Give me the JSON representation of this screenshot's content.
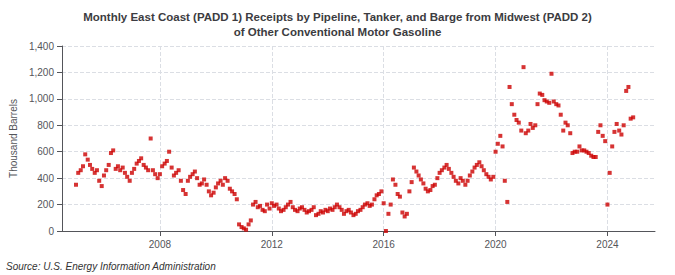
{
  "chart_data": {
    "type": "scatter",
    "title": "Monthly East Coast (PADD 1) Receipts by Pipeline, Tanker, and Barge from Midwest (PADD 2)\nof Other Conventional Motor Gasoline",
    "ylabel": "Thousand Barrels",
    "annotations": [
      "Source: U.S. Energy Information Administration"
    ],
    "color": "#CC0000",
    "marker": "square",
    "grid": true,
    "xlim": [
      2004.5,
      2025.7
    ],
    "xticks": [
      2008,
      2012,
      2016,
      2020,
      2024
    ],
    "ylim": [
      0,
      1400
    ],
    "yticks": [
      0,
      200,
      400,
      600,
      800,
      {
        "value": 1000,
        "label": "1,000"
      },
      {
        "value": 1200,
        "label": "1,200"
      },
      {
        "value": 1400,
        "label": "1,400"
      }
    ],
    "x": [
      2005.0,
      2005.08,
      2005.17,
      2005.25,
      2005.33,
      2005.42,
      2005.5,
      2005.58,
      2005.67,
      2005.75,
      2005.83,
      2005.92,
      2006.0,
      2006.08,
      2006.17,
      2006.25,
      2006.33,
      2006.42,
      2006.5,
      2006.58,
      2006.67,
      2006.75,
      2006.83,
      2006.92,
      2007.0,
      2007.08,
      2007.17,
      2007.25,
      2007.33,
      2007.42,
      2007.5,
      2007.58,
      2007.67,
      2007.75,
      2007.83,
      2007.92,
      2008.0,
      2008.08,
      2008.17,
      2008.25,
      2008.33,
      2008.42,
      2008.5,
      2008.58,
      2008.67,
      2008.75,
      2008.83,
      2008.92,
      2009.0,
      2009.08,
      2009.17,
      2009.25,
      2009.33,
      2009.42,
      2009.5,
      2009.58,
      2009.67,
      2009.75,
      2009.83,
      2009.92,
      2010.0,
      2010.08,
      2010.17,
      2010.25,
      2010.33,
      2010.42,
      2010.5,
      2010.58,
      2010.67,
      2010.75,
      2010.83,
      2010.92,
      2011.0,
      2011.08,
      2011.17,
      2011.25,
      2011.33,
      2011.42,
      2011.5,
      2011.58,
      2011.67,
      2011.75,
      2011.83,
      2011.92,
      2012.0,
      2012.08,
      2012.17,
      2012.25,
      2012.33,
      2012.42,
      2012.5,
      2012.58,
      2012.67,
      2012.75,
      2012.83,
      2012.92,
      2013.0,
      2013.08,
      2013.17,
      2013.25,
      2013.33,
      2013.42,
      2013.5,
      2013.58,
      2013.67,
      2013.75,
      2013.83,
      2013.92,
      2014.0,
      2014.08,
      2014.17,
      2014.25,
      2014.33,
      2014.42,
      2014.5,
      2014.58,
      2014.67,
      2014.75,
      2014.83,
      2014.92,
      2015.0,
      2015.08,
      2015.17,
      2015.25,
      2015.33,
      2015.42,
      2015.5,
      2015.58,
      2015.67,
      2015.75,
      2015.83,
      2015.92,
      2016.0,
      2016.08,
      2016.17,
      2016.25,
      2016.33,
      2016.42,
      2016.5,
      2016.58,
      2016.67,
      2016.75,
      2016.83,
      2016.92,
      2017.0,
      2017.08,
      2017.17,
      2017.25,
      2017.33,
      2017.42,
      2017.5,
      2017.58,
      2017.67,
      2017.75,
      2017.83,
      2017.92,
      2018.0,
      2018.08,
      2018.17,
      2018.25,
      2018.33,
      2018.42,
      2018.5,
      2018.58,
      2018.67,
      2018.75,
      2018.83,
      2018.92,
      2019.0,
      2019.08,
      2019.17,
      2019.25,
      2019.33,
      2019.42,
      2019.5,
      2019.58,
      2019.67,
      2019.75,
      2019.83,
      2019.92,
      2020.0,
      2020.08,
      2020.17,
      2020.25,
      2020.33,
      2020.42,
      2020.5,
      2020.58,
      2020.67,
      2020.75,
      2020.83,
      2020.92,
      2021.0,
      2021.08,
      2021.17,
      2021.25,
      2021.33,
      2021.42,
      2021.5,
      2021.58,
      2021.67,
      2021.75,
      2021.83,
      2021.92,
      2022.0,
      2022.08,
      2022.17,
      2022.25,
      2022.33,
      2022.42,
      2022.5,
      2022.58,
      2022.67,
      2022.75,
      2022.83,
      2022.92,
      2023.0,
      2023.08,
      2023.17,
      2023.25,
      2023.33,
      2023.42,
      2023.5,
      2023.58,
      2023.67,
      2023.75,
      2023.83,
      2023.92,
      2024.0,
      2024.08,
      2024.17,
      2024.25,
      2024.33,
      2024.42,
      2024.5,
      2024.58,
      2024.67,
      2024.75,
      2024.83,
      2024.92
    ],
    "values": [
      350,
      440,
      460,
      490,
      580,
      540,
      500,
      470,
      440,
      460,
      380,
      340,
      420,
      460,
      500,
      590,
      610,
      470,
      490,
      460,
      480,
      440,
      410,
      380,
      440,
      470,
      510,
      530,
      550,
      500,
      480,
      460,
      700,
      460,
      430,
      400,
      430,
      490,
      510,
      530,
      600,
      480,
      420,
      440,
      460,
      380,
      310,
      280,
      380,
      410,
      430,
      450,
      400,
      350,
      360,
      390,
      350,
      300,
      270,
      290,
      330,
      360,
      380,
      350,
      400,
      380,
      320,
      300,
      280,
      240,
      50,
      30,
      20,
      10,
      50,
      80,
      200,
      220,
      180,
      190,
      160,
      150,
      200,
      170,
      210,
      190,
      200,
      170,
      150,
      160,
      180,
      200,
      220,
      180,
      160,
      150,
      170,
      180,
      160,
      140,
      150,
      160,
      180,
      120,
      130,
      150,
      140,
      160,
      150,
      170,
      160,
      180,
      200,
      180,
      160,
      130,
      150,
      160,
      140,
      120,
      130,
      150,
      160,
      180,
      200,
      210,
      190,
      200,
      240,
      270,
      280,
      300,
      210,
      0,
      130,
      200,
      390,
      350,
      280,
      260,
      140,
      110,
      130,
      300,
      370,
      480,
      450,
      420,
      390,
      360,
      320,
      300,
      310,
      340,
      350,
      400,
      440,
      460,
      480,
      500,
      470,
      440,
      410,
      380,
      360,
      400,
      380,
      350,
      380,
      420,
      450,
      480,
      500,
      520,
      490,
      460,
      430,
      410,
      390,
      410,
      600,
      660,
      720,
      640,
      380,
      220,
      1090,
      960,
      880,
      840,
      820,
      760,
      1240,
      740,
      760,
      810,
      780,
      800,
      960,
      1040,
      1030,
      990,
      980,
      970,
      1190,
      980,
      960,
      950,
      880,
      760,
      820,
      800,
      740,
      590,
      600,
      600,
      640,
      610,
      610,
      600,
      590,
      570,
      560,
      560,
      750,
      800,
      720,
      680,
      200,
      440,
      640,
      750,
      810,
      760,
      730,
      800,
      1060,
      1090,
      850,
      860
    ]
  }
}
